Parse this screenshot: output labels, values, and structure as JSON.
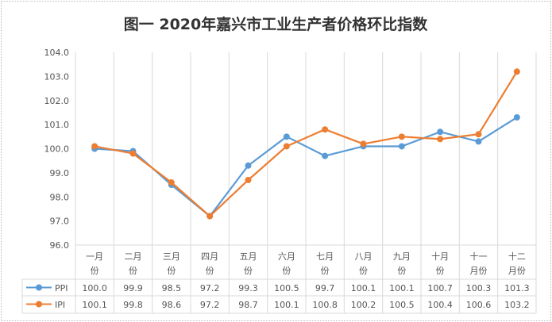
{
  "chart_data": {
    "type": "line",
    "title": "图一 2020年嘉兴市工业生产者价格环比指数",
    "categories": [
      [
        "一月",
        "份"
      ],
      [
        "二月",
        "份"
      ],
      [
        "三月",
        "份"
      ],
      [
        "四月",
        "份"
      ],
      [
        "五月",
        "份"
      ],
      [
        "六月",
        "份"
      ],
      [
        "七月",
        "份"
      ],
      [
        "八月",
        "份"
      ],
      [
        "九月",
        "份"
      ],
      [
        "十月",
        "份"
      ],
      [
        "十一",
        "月份"
      ],
      [
        "十二",
        "月份"
      ]
    ],
    "ylim": [
      96.0,
      104.0
    ],
    "yticks": [
      "96.0",
      "97.0",
      "98.0",
      "99.0",
      "100.0",
      "101.0",
      "102.0",
      "103.0",
      "104.0"
    ],
    "grid": "vertical",
    "legend": "data-table",
    "series": [
      {
        "name": "PPI",
        "color": "#5B9BD5",
        "values": [
          100.0,
          99.9,
          98.5,
          97.2,
          99.3,
          100.5,
          99.7,
          100.1,
          100.1,
          100.7,
          100.3,
          101.3
        ]
      },
      {
        "name": "IPI",
        "color": "#ED7D31",
        "values": [
          100.1,
          99.8,
          98.6,
          97.2,
          98.7,
          100.1,
          100.8,
          100.2,
          100.5,
          100.4,
          100.6,
          103.2
        ]
      }
    ]
  }
}
